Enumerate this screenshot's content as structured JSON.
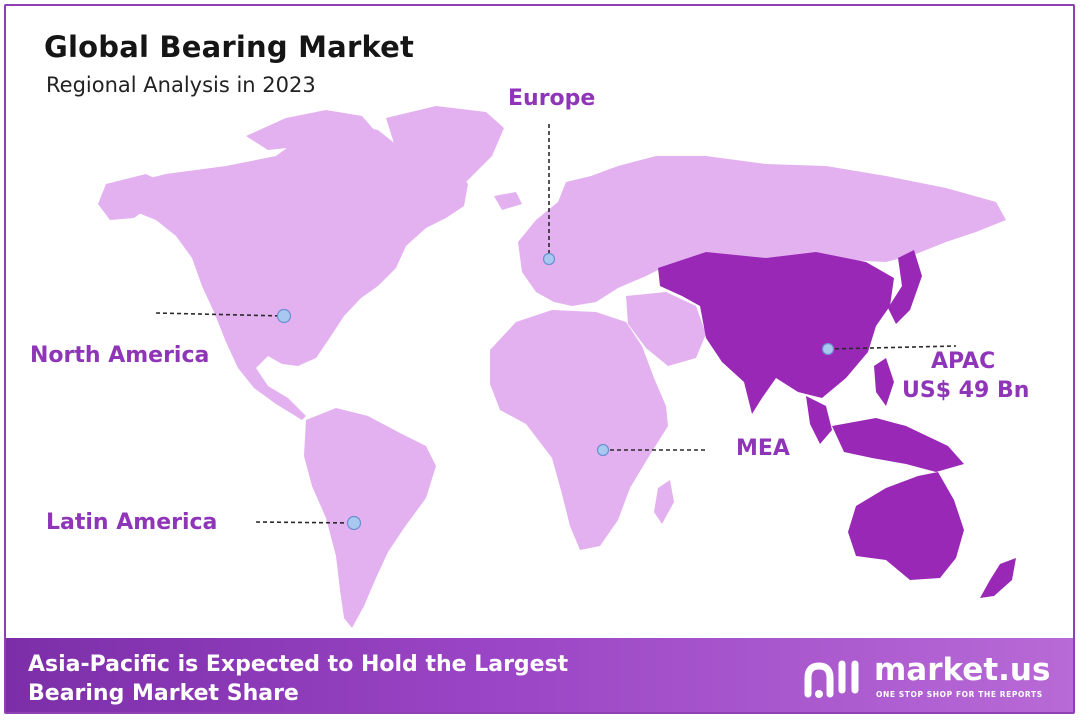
{
  "header": {
    "title": "Global Bearing Market",
    "subtitle": "Regional Analysis in 2023"
  },
  "regions": [
    {
      "id": "north-america",
      "label": "North America",
      "highlighted": false
    },
    {
      "id": "europe",
      "label": "Europe",
      "highlighted": false
    },
    {
      "id": "apac",
      "label": "APAC",
      "value": "US$ 49 Bn",
      "highlighted": true
    },
    {
      "id": "mea",
      "label": "MEA",
      "highlighted": false
    },
    {
      "id": "latin-america",
      "label": "Latin America",
      "highlighted": false
    }
  ],
  "colors": {
    "land": "#e3b1ef",
    "highlight": "#9a28b6",
    "label": "#8f35b8",
    "marker": "#a9c8f0",
    "border": "#8e3fb3"
  },
  "footer": {
    "line1": "Asia-Pacific is Expected to Hold the Largest",
    "line2": "Bearing Market Share",
    "brand": "market.us",
    "tagline": "ONE STOP SHOP FOR THE REPORTS",
    "logo_icon": "market-us-logo-icon"
  }
}
